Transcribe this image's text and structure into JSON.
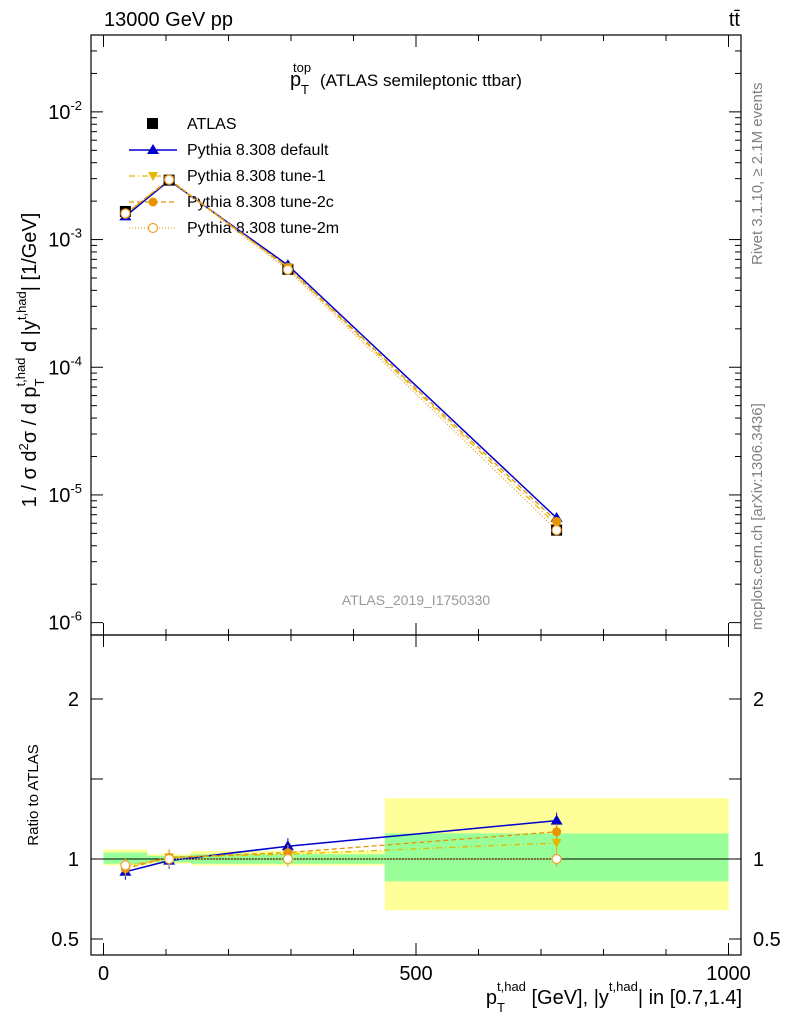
{
  "header": {
    "beam": "13000 GeV pp",
    "process": "tt̄"
  },
  "side_labels": {
    "rivet": "Rivet 3.1.10, ≥ 2.1M events",
    "source": "mcplots.cern.ch [arXiv:1306.3436]"
  },
  "analysis_tag": "ATLAS_2019_I1750330",
  "colors": {
    "data": "#000000",
    "default": "#0000cc",
    "tune1": "#e6b800",
    "tune2c": "#e69500",
    "tune2m": "#f0a030",
    "band_inner": "#99ff99",
    "band_outer": "#ffff99",
    "ref_text": "#999999",
    "side_text": "#808080"
  },
  "chart_data": {
    "type": "line",
    "title": "ATLAS semileptonic ttbar",
    "title_var": {
      "base": "p",
      "sub": "T",
      "sup": "top"
    },
    "ylabel": {
      "parts": [
        "1 / σ d",
        "2",
        "σ / d p",
        "T",
        "t,had",
        " d |y",
        "t,had",
        "| [1/GeV]"
      ]
    },
    "xlabel": {
      "parts": [
        "p",
        "T",
        "t,had",
        " [GeV], |y",
        "t,had",
        "| in [0.7,1.4]"
      ]
    },
    "ratio_ylabel": "Ratio to ATLAS",
    "xlim": [
      -20,
      1020
    ],
    "ylim": [
      8e-07,
      0.04
    ],
    "yscale": "log",
    "ratio_ylim": [
      0.4,
      2.4
    ],
    "x_ticks": [
      "0",
      "500",
      "1000"
    ],
    "y_ticks": [
      "10^-6",
      "10^-5",
      "10^-4",
      "10^-3",
      "10^-2"
    ],
    "ratio_ticks": [
      "0.5",
      "1",
      "2"
    ],
    "legend": [
      "ATLAS",
      "Pythia 8.308 default",
      "Pythia 8.308 tune-1",
      "Pythia 8.308 tune-2c",
      "Pythia 8.308 tune-2m"
    ],
    "legend_position": "top-left",
    "x": [
      35,
      105,
      295,
      725
    ],
    "bins": [
      [
        0,
        70
      ],
      [
        70,
        140
      ],
      [
        140,
        450
      ],
      [
        450,
        1000
      ]
    ],
    "series": [
      {
        "name": "ATLAS",
        "values": [
          0.00166,
          0.00292,
          0.000585,
          5.3e-06
        ]
      },
      {
        "name": "Pythia 8.308 default",
        "values": [
          0.00152,
          0.0029,
          0.00063,
          6.6e-06
        ]
      },
      {
        "name": "Pythia 8.308 tune-1",
        "values": [
          0.00158,
          0.00294,
          0.0006,
          5.8e-06
        ]
      },
      {
        "name": "Pythia 8.308 tune-2c",
        "values": [
          0.00158,
          0.00296,
          0.000605,
          6.2e-06
        ]
      },
      {
        "name": "Pythia 8.308 tune-2m",
        "values": [
          0.0016,
          0.00294,
          0.00058,
          5.3e-06
        ]
      }
    ],
    "ratio_series": [
      {
        "name": "Pythia 8.308 default",
        "values": [
          0.92,
          0.99,
          1.08,
          1.24
        ]
      },
      {
        "name": "Pythia 8.308 tune-1",
        "values": [
          0.95,
          1.01,
          1.03,
          1.1
        ]
      },
      {
        "name": "Pythia 8.308 tune-2c",
        "values": [
          0.94,
          1.01,
          1.04,
          1.17
        ]
      },
      {
        "name": "Pythia 8.308 tune-2m",
        "values": [
          0.96,
          1.0,
          1.0,
          1.0
        ]
      }
    ],
    "uncertainty": {
      "inner": [
        [
          0.97,
          1.04
        ],
        [
          0.98,
          1.02
        ],
        [
          0.97,
          1.03
        ],
        [
          0.86,
          1.16
        ]
      ],
      "outer": [
        [
          0.96,
          1.06
        ],
        [
          0.97,
          1.03
        ],
        [
          0.96,
          1.05
        ],
        [
          0.68,
          1.38
        ]
      ]
    }
  }
}
